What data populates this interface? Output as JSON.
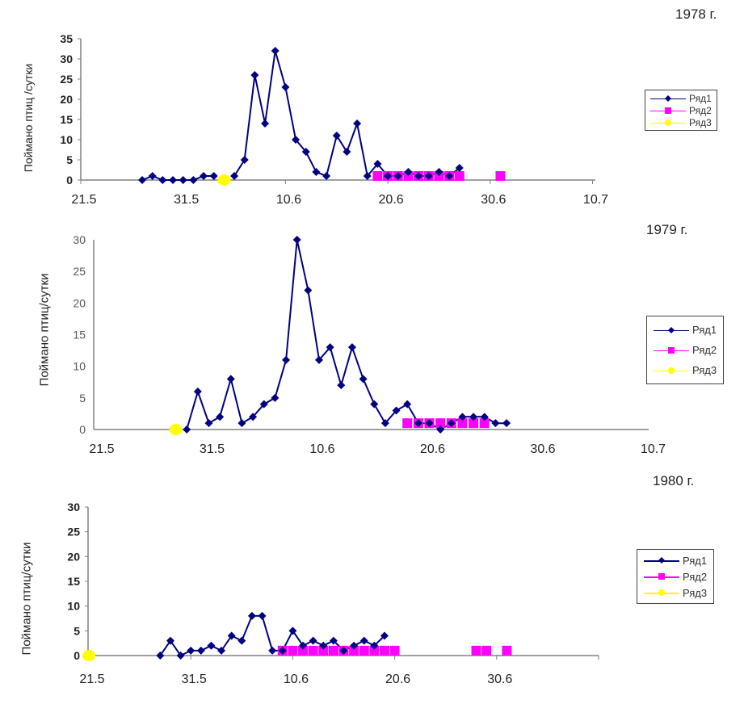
{
  "colors": {
    "series1": "#000080",
    "series2": "#ff00ff",
    "series3": "#ffff00",
    "axis": "#808080"
  },
  "chart_data": [
    {
      "type": "line",
      "title": "1978 г.",
      "xlabel": "",
      "ylabel": "Поймано птиц /сутки",
      "x_unit": "days since 21.5",
      "xlim": [
        0,
        51
      ],
      "ylim": [
        0,
        35
      ],
      "yticks": [
        0,
        5,
        10,
        15,
        20,
        25,
        30,
        35
      ],
      "xticks": [
        {
          "day": 0,
          "label": "21.5"
        },
        {
          "day": 10,
          "label": "31.5"
        },
        {
          "day": 20,
          "label": "10.6"
        },
        {
          "day": 30,
          "label": "20.6"
        },
        {
          "day": 40,
          "label": "30.6"
        },
        {
          "day": 50,
          "label": "10.7"
        }
      ],
      "legend": [
        "Ряд1",
        "Ряд2",
        "Ряд3"
      ],
      "legend_position": "right",
      "series": [
        {
          "name": "Ряд1",
          "x": [
            6,
            7,
            8,
            9,
            10,
            11,
            12,
            13,
            15,
            16,
            17,
            18,
            19,
            20,
            21,
            22,
            23,
            24,
            25,
            26,
            27,
            28,
            29,
            30,
            31,
            32,
            33,
            34,
            35,
            36,
            37
          ],
          "y": [
            0,
            1,
            0,
            0,
            0,
            0,
            1,
            1,
            1,
            5,
            26,
            14,
            32,
            23,
            10,
            7,
            2,
            1,
            11,
            7,
            14,
            1,
            4,
            1,
            1,
            2,
            1,
            1,
            2,
            1,
            3
          ]
        },
        {
          "name": "Ряд2",
          "x": [
            29,
            30,
            31,
            32,
            33,
            34,
            35,
            36,
            37,
            41
          ],
          "y": [
            1,
            1,
            1,
            1,
            1,
            1,
            1,
            1,
            1,
            1
          ]
        },
        {
          "name": "Ряд3",
          "x": [
            14
          ],
          "y": [
            0
          ]
        }
      ]
    },
    {
      "type": "line",
      "title": "1979 г.",
      "xlabel": "",
      "ylabel": "Поймано птиц/сутки",
      "x_unit": "days since 21.5",
      "xlim": [
        0,
        51
      ],
      "ylim": [
        0,
        30
      ],
      "yticks": [
        0,
        5,
        10,
        15,
        20,
        25,
        30
      ],
      "xticks": [
        {
          "day": 0,
          "label": "21.5"
        },
        {
          "day": 10,
          "label": "31.5"
        },
        {
          "day": 20,
          "label": "10.6"
        },
        {
          "day": 30,
          "label": "20.6"
        },
        {
          "day": 40,
          "label": "30.6"
        },
        {
          "day": 50,
          "label": "10.7"
        }
      ],
      "legend": [
        "Ряд1",
        "Ряд2",
        "Ряд3"
      ],
      "legend_position": "right",
      "series": [
        {
          "name": "Ряд1",
          "x": [
            8,
            9,
            10,
            11,
            12,
            13,
            14,
            15,
            16,
            17,
            18,
            19,
            20,
            21,
            22,
            23,
            24,
            25,
            26,
            27,
            28,
            29,
            30,
            31,
            32,
            33,
            34,
            35,
            36,
            37
          ],
          "y": [
            0,
            6,
            1,
            2,
            8,
            1,
            2,
            4,
            5,
            11,
            30,
            22,
            11,
            13,
            7,
            13,
            8,
            4,
            1,
            3,
            4,
            1,
            1,
            0,
            1,
            2,
            2,
            2,
            1,
            1
          ]
        },
        {
          "name": "Ряд2",
          "x": [
            28,
            29,
            30,
            31,
            32,
            33,
            34,
            35
          ],
          "y": [
            1,
            1,
            1,
            1,
            1,
            1,
            1,
            1
          ]
        },
        {
          "name": "Ряд3",
          "x": [
            7
          ],
          "y": [
            0
          ]
        }
      ]
    },
    {
      "type": "line",
      "title": "1980 г.",
      "xlabel": "",
      "ylabel": "Поймано птиц/сутки",
      "x_unit": "days since 21.5",
      "xlim": [
        0,
        50
      ],
      "ylim": [
        0,
        30
      ],
      "yticks": [
        0,
        5,
        10,
        15,
        20,
        25,
        30
      ],
      "xticks": [
        {
          "day": 0,
          "label": "21.5"
        },
        {
          "day": 10,
          "label": "31.5"
        },
        {
          "day": 20,
          "label": "10.6"
        },
        {
          "day": 30,
          "label": "20.6"
        },
        {
          "day": 40,
          "label": "30.6"
        },
        {
          "day": 50,
          "label": ""
        }
      ],
      "legend": [
        "Ряд1",
        "Ряд2",
        "Ряд3"
      ],
      "legend_position": "right",
      "series": [
        {
          "name": "Ряд1",
          "x": [
            7,
            8,
            9,
            10,
            11,
            12,
            13,
            14,
            15,
            16,
            17,
            18,
            19,
            20,
            21,
            22,
            23,
            24,
            25,
            26,
            27,
            28,
            29
          ],
          "y": [
            0,
            3,
            0,
            1,
            1,
            2,
            1,
            4,
            3,
            8,
            8,
            1,
            1,
            5,
            2,
            3,
            2,
            3,
            1,
            2,
            3,
            2,
            4
          ]
        },
        {
          "name": "Ряд2",
          "x": [
            19,
            20,
            21,
            22,
            23,
            24,
            25,
            26,
            27,
            28,
            29,
            30,
            38,
            39,
            41
          ],
          "y": [
            1,
            1,
            1,
            1,
            1,
            1,
            1,
            1,
            1,
            1,
            1,
            1,
            1,
            1,
            1
          ]
        },
        {
          "name": "Ряд3",
          "x": [
            0
          ],
          "y": [
            0
          ]
        }
      ]
    }
  ]
}
